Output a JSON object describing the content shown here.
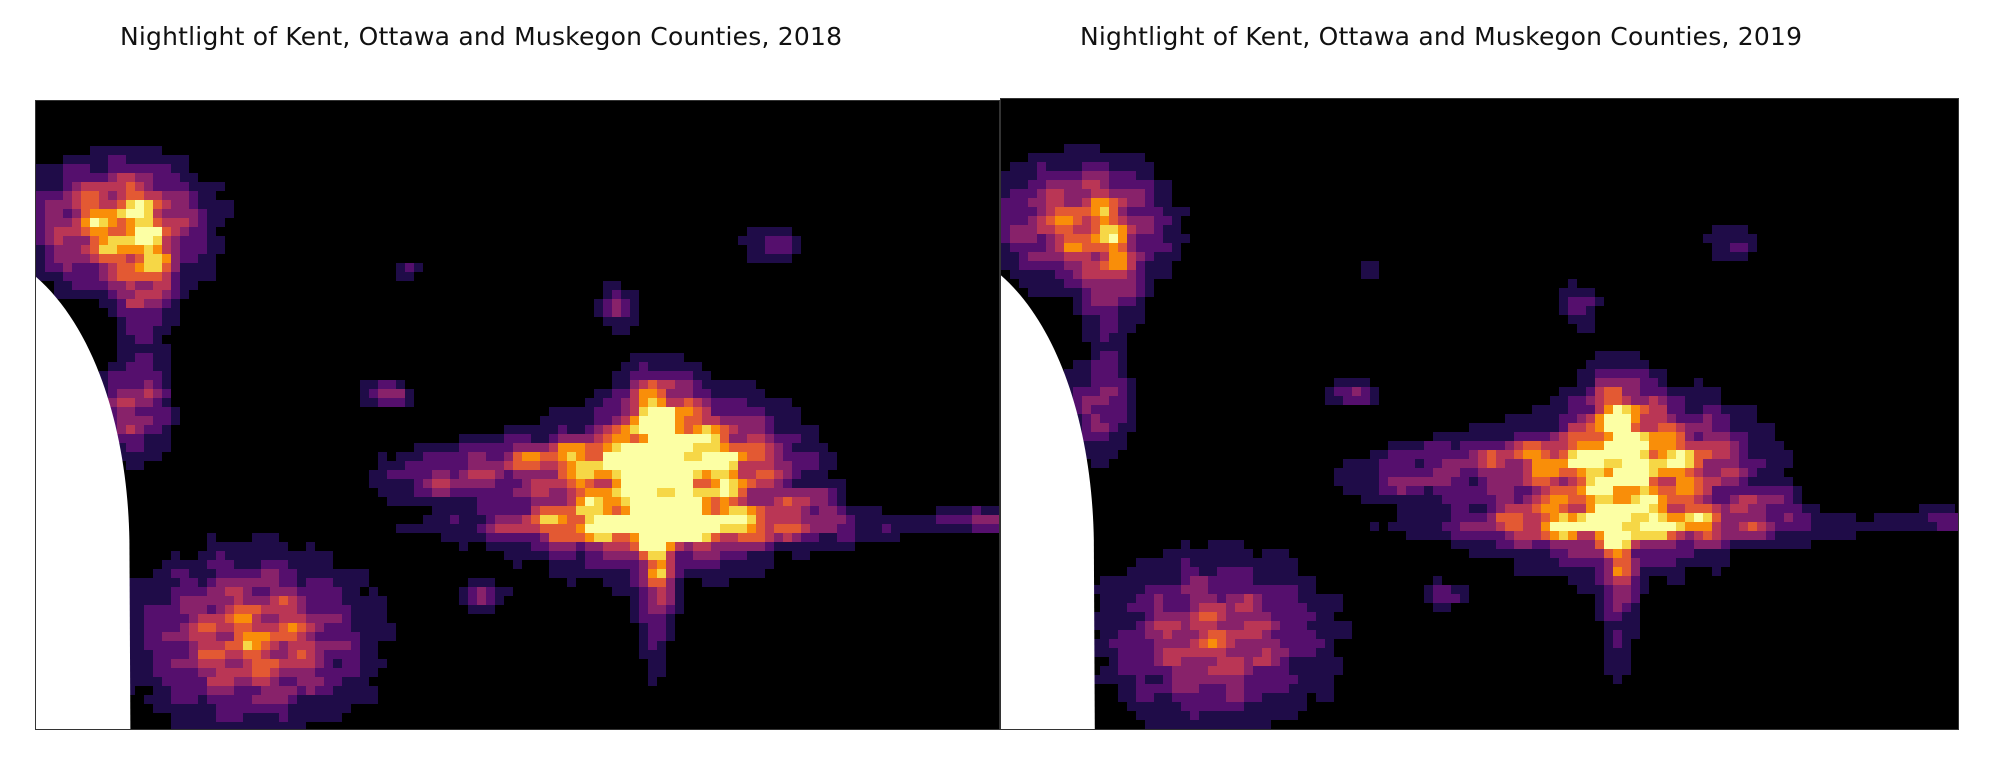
{
  "panels": [
    {
      "title": "Nightlight of Kent, Ottawa and Muskegon Counties, 2018",
      "year": 2018
    },
    {
      "title": "Nightlight of Kent, Ottawa and Muskegon Counties, 2019",
      "year": 2019
    }
  ],
  "colormap": [
    "#000004",
    "#1f0c48",
    "#550f6d",
    "#88226a",
    "#ba3655",
    "#e35933",
    "#f98e09",
    "#f6d746",
    "#fcffa4"
  ],
  "land_color": "#000000",
  "water_color": "#ffffff"
}
